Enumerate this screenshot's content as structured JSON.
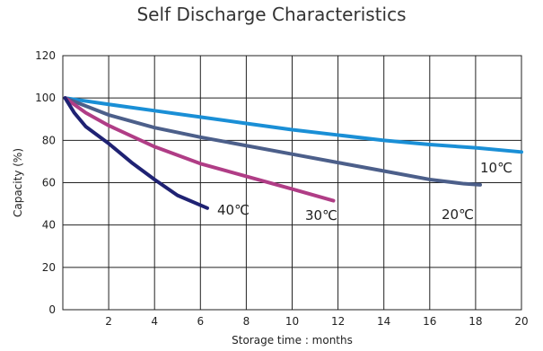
{
  "chart_data": {
    "type": "line",
    "title": "Self Discharge Characteristics",
    "xlabel": "Storage time : months",
    "ylabel": "Capacity (%)",
    "xlim": [
      0,
      20
    ],
    "ylim": [
      0,
      120
    ],
    "x_ticks": [
      "2",
      "4",
      "6",
      "8",
      "10",
      "12",
      "14",
      "16",
      "18",
      "20"
    ],
    "y_ticks": [
      "0",
      "20",
      "40",
      "60",
      "80",
      "100",
      "120"
    ],
    "grid": true,
    "series": [
      {
        "name": "10℃",
        "color": "#1a8fd6",
        "x": [
          0.1,
          2,
          4,
          6,
          8,
          10,
          12,
          14,
          16,
          18,
          20
        ],
        "y": [
          100,
          97,
          94,
          91,
          88,
          85,
          82.5,
          80,
          78,
          76.5,
          74.5
        ]
      },
      {
        "name": "20℃",
        "color": "#4c5f8a",
        "x": [
          0.1,
          2,
          4,
          6,
          8,
          10,
          12,
          14,
          16,
          17.5,
          18.2
        ],
        "y": [
          100,
          92,
          86,
          81.5,
          77.5,
          73.5,
          69.5,
          65.5,
          61.5,
          59.5,
          59
        ]
      },
      {
        "name": "30℃",
        "color": "#b03d86",
        "x": [
          0.1,
          1,
          2,
          4,
          6,
          8,
          10,
          11.8
        ],
        "y": [
          100,
          93,
          87,
          77,
          69,
          63,
          57,
          51.5
        ]
      },
      {
        "name": "40℃",
        "color": "#1f2273",
        "x": [
          0.1,
          0.5,
          1,
          2,
          3,
          4,
          5,
          6.3
        ],
        "y": [
          100,
          93,
          86.5,
          78.5,
          69.5,
          61.5,
          54,
          48
        ]
      }
    ]
  }
}
